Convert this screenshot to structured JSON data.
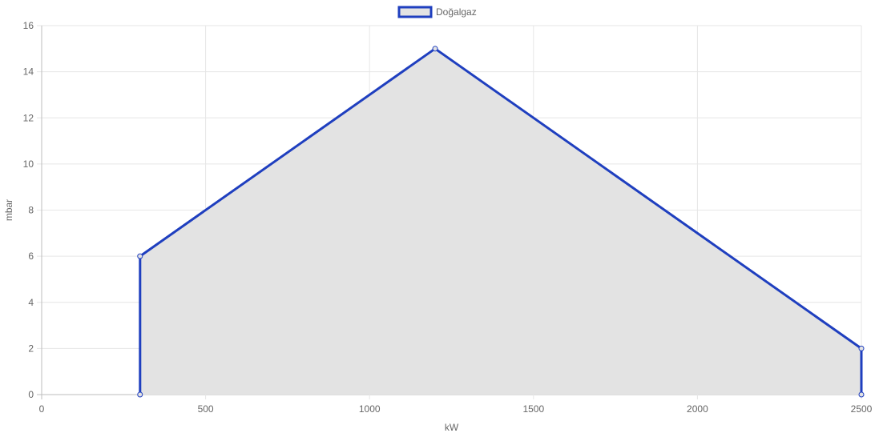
{
  "chart_data": {
    "type": "area",
    "title": "",
    "xlabel": "kW",
    "ylabel": "mbar",
    "xlim": [
      0,
      2500
    ],
    "ylim": [
      0,
      16
    ],
    "x_ticks": [
      0,
      500,
      1000,
      1500,
      2000,
      2500
    ],
    "y_ticks": [
      0,
      2,
      4,
      6,
      8,
      10,
      12,
      14,
      16
    ],
    "grid": true,
    "legend": "top-center",
    "series": [
      {
        "name": "Doğalgaz",
        "color": "#1f3fbf",
        "fill": "#e3e3e3",
        "points": [
          {
            "x": 300,
            "y": 0
          },
          {
            "x": 300,
            "y": 6
          },
          {
            "x": 1200,
            "y": 15
          },
          {
            "x": 2500,
            "y": 2
          },
          {
            "x": 2500,
            "y": 0
          }
        ]
      }
    ]
  }
}
